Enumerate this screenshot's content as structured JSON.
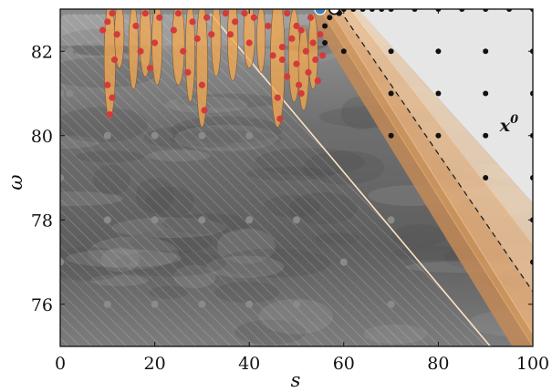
{
  "chart_data": {
    "type": "scatter",
    "xlabel": "s",
    "ylabel": "ω",
    "xlim": [
      0,
      100
    ],
    "ylim": [
      75,
      83
    ],
    "xticks": [
      "0",
      "20",
      "40",
      "60",
      "80",
      "100"
    ],
    "yticks": [
      "76",
      "78",
      "80",
      "82"
    ],
    "xtick_values": [
      0,
      20,
      40,
      60,
      80,
      100
    ],
    "ytick_values": [
      76,
      78,
      80,
      82
    ],
    "annotation": {
      "text": "x",
      "sup": "0",
      "x": 93,
      "y": 80.1
    },
    "colors": {
      "infeasible_background": "#7a7a7a",
      "feasible_region": "#e6e6e6",
      "uncertainty_band": "#f2c79a",
      "ellipse_fill": "#f6a84f",
      "sample_points": "#d33b3b",
      "grid_points": "#111111",
      "history_points": "#8a8a8a",
      "start_point": "#3b7fb8",
      "current_point": "#ffffff"
    },
    "feasible_boundary": {
      "x": [
        55,
        100
      ],
      "y": [
        83,
        75
      ],
      "style": "solid"
    },
    "band_boundaries": [
      {
        "x": [
          59,
          100
        ],
        "y": [
          83,
          76.3
        ],
        "style": "dashed"
      },
      {
        "x": [
          57,
          100
        ],
        "y": [
          83,
          75.3
        ],
        "style": "solid"
      },
      {
        "x": [
          61,
          100
        ],
        "y": [
          83,
          77.4
        ],
        "style": "solid"
      }
    ],
    "constraint_line": {
      "x": [
        31,
        91
      ],
      "y": [
        83,
        75
      ],
      "style": "solid",
      "color": "#fbe3c4"
    },
    "grid_points": [
      {
        "x": 60,
        "y": 83
      },
      {
        "x": 70,
        "y": 83
      },
      {
        "x": 80,
        "y": 83
      },
      {
        "x": 90,
        "y": 83
      },
      {
        "x": 100,
        "y": 83
      },
      {
        "x": 62,
        "y": 83
      },
      {
        "x": 64,
        "y": 83
      },
      {
        "x": 66,
        "y": 83
      },
      {
        "x": 68,
        "y": 83
      },
      {
        "x": 75,
        "y": 83
      },
      {
        "x": 85,
        "y": 83
      },
      {
        "x": 95,
        "y": 83
      },
      {
        "x": 60,
        "y": 82
      },
      {
        "x": 70,
        "y": 82
      },
      {
        "x": 80,
        "y": 82
      },
      {
        "x": 90,
        "y": 82
      },
      {
        "x": 100,
        "y": 82
      },
      {
        "x": 70,
        "y": 81
      },
      {
        "x": 80,
        "y": 81
      },
      {
        "x": 90,
        "y": 81
      },
      {
        "x": 100,
        "y": 81
      },
      {
        "x": 70,
        "y": 80
      },
      {
        "x": 80,
        "y": 80
      },
      {
        "x": 90,
        "y": 80
      },
      {
        "x": 100,
        "y": 80
      },
      {
        "x": 90,
        "y": 79
      },
      {
        "x": 100,
        "y": 79
      },
      {
        "x": 100,
        "y": 78
      },
      {
        "x": 56,
        "y": 82.6
      },
      {
        "x": 57,
        "y": 82.8
      },
      {
        "x": 58,
        "y": 83
      },
      {
        "x": 59,
        "y": 82.9
      },
      {
        "x": 56,
        "y": 82.2
      },
      {
        "x": 100,
        "y": 77
      }
    ],
    "history_points": [
      {
        "x": 0,
        "y": 83
      },
      {
        "x": 5,
        "y": 83
      },
      {
        "x": 10,
        "y": 83
      },
      {
        "x": 15,
        "y": 83
      },
      {
        "x": 20,
        "y": 83
      },
      {
        "x": 25,
        "y": 83
      },
      {
        "x": 30,
        "y": 83
      },
      {
        "x": 35,
        "y": 83
      },
      {
        "x": 40,
        "y": 83
      },
      {
        "x": 45,
        "y": 83
      },
      {
        "x": 50,
        "y": 83
      },
      {
        "x": 0,
        "y": 82.9
      },
      {
        "x": 0,
        "y": 82
      },
      {
        "x": 0,
        "y": 81
      },
      {
        "x": 2,
        "y": 82
      },
      {
        "x": 2,
        "y": 81
      },
      {
        "x": 10,
        "y": 80
      },
      {
        "x": 20,
        "y": 80
      },
      {
        "x": 30,
        "y": 80
      },
      {
        "x": 40,
        "y": 80
      },
      {
        "x": 10,
        "y": 78
      },
      {
        "x": 20,
        "y": 78
      },
      {
        "x": 30,
        "y": 78
      },
      {
        "x": 40,
        "y": 78
      },
      {
        "x": 50,
        "y": 78
      },
      {
        "x": 70,
        "y": 78
      },
      {
        "x": 10,
        "y": 76
      },
      {
        "x": 20,
        "y": 76
      },
      {
        "x": 30,
        "y": 76
      },
      {
        "x": 40,
        "y": 76
      },
      {
        "x": 50,
        "y": 76
      },
      {
        "x": 0,
        "y": 79
      },
      {
        "x": 0,
        "y": 77
      },
      {
        "x": 60,
        "y": 77
      },
      {
        "x": 70,
        "y": 76
      }
    ],
    "sample_points": [
      {
        "x": 9,
        "y": 82.5
      },
      {
        "x": 10,
        "y": 81.2
      },
      {
        "x": 10.5,
        "y": 80.5
      },
      {
        "x": 11,
        "y": 82.9
      },
      {
        "x": 11.5,
        "y": 81.8
      },
      {
        "x": 12,
        "y": 82.4
      },
      {
        "x": 10,
        "y": 82.7
      },
      {
        "x": 11,
        "y": 80.9
      },
      {
        "x": 16,
        "y": 82.6
      },
      {
        "x": 17,
        "y": 82.0
      },
      {
        "x": 18,
        "y": 82.9
      },
      {
        "x": 19,
        "y": 81.6
      },
      {
        "x": 20,
        "y": 82.2
      },
      {
        "x": 21,
        "y": 82.8
      },
      {
        "x": 24,
        "y": 82.5
      },
      {
        "x": 25,
        "y": 82.9
      },
      {
        "x": 26,
        "y": 82.0
      },
      {
        "x": 27,
        "y": 81.5
      },
      {
        "x": 28,
        "y": 82.7
      },
      {
        "x": 29,
        "y": 82.3
      },
      {
        "x": 30,
        "y": 81.2
      },
      {
        "x": 30.5,
        "y": 80.6
      },
      {
        "x": 31,
        "y": 82.8
      },
      {
        "x": 32,
        "y": 82.4
      },
      {
        "x": 35,
        "y": 82.9
      },
      {
        "x": 36,
        "y": 82.4
      },
      {
        "x": 37,
        "y": 82.7
      },
      {
        "x": 39,
        "y": 82.9
      },
      {
        "x": 40,
        "y": 82.2
      },
      {
        "x": 41,
        "y": 82.8
      },
      {
        "x": 44,
        "y": 82.6
      },
      {
        "x": 45,
        "y": 81.9
      },
      {
        "x": 46,
        "y": 80.9
      },
      {
        "x": 46.5,
        "y": 80.4
      },
      {
        "x": 47,
        "y": 82.1
      },
      {
        "x": 48,
        "y": 82.9
      },
      {
        "x": 49,
        "y": 82.3
      },
      {
        "x": 50,
        "y": 81.7
      },
      {
        "x": 50.5,
        "y": 81.2
      },
      {
        "x": 51,
        "y": 82.5
      },
      {
        "x": 52,
        "y": 82.0
      },
      {
        "x": 52.5,
        "y": 81.5
      },
      {
        "x": 53,
        "y": 82.8
      },
      {
        "x": 53.5,
        "y": 82.2
      },
      {
        "x": 54,
        "y": 81.8
      },
      {
        "x": 54.5,
        "y": 81.3
      },
      {
        "x": 55,
        "y": 82.4
      },
      {
        "x": 55.5,
        "y": 81.9
      },
      {
        "x": 50,
        "y": 82.6
      },
      {
        "x": 48,
        "y": 81.4
      },
      {
        "x": 47,
        "y": 81.8
      },
      {
        "x": 51,
        "y": 81.0
      }
    ],
    "ellipses": [
      {
        "cx": 10.5,
        "cy": 81.8,
        "rx": 1.2,
        "ry": 1.4
      },
      {
        "cx": 12.5,
        "cy": 82.4,
        "rx": 1.0,
        "ry": 0.8
      },
      {
        "cx": 15.5,
        "cy": 82.1,
        "rx": 1.0,
        "ry": 1.0
      },
      {
        "cx": 18,
        "cy": 82.3,
        "rx": 1.2,
        "ry": 0.9
      },
      {
        "cx": 20.5,
        "cy": 82.2,
        "rx": 1.1,
        "ry": 1.0
      },
      {
        "cx": 25,
        "cy": 82.2,
        "rx": 1.3,
        "ry": 1.0
      },
      {
        "cx": 27.5,
        "cy": 82.0,
        "rx": 1.0,
        "ry": 1.2
      },
      {
        "cx": 30,
        "cy": 81.7,
        "rx": 1.2,
        "ry": 1.5
      },
      {
        "cx": 33,
        "cy": 82.3,
        "rx": 1.0,
        "ry": 0.9
      },
      {
        "cx": 36.5,
        "cy": 82.3,
        "rx": 1.1,
        "ry": 1.0
      },
      {
        "cx": 40,
        "cy": 82.4,
        "rx": 1.2,
        "ry": 0.8
      },
      {
        "cx": 42.5,
        "cy": 82.3,
        "rx": 0.9,
        "ry": 0.8
      },
      {
        "cx": 46,
        "cy": 81.8,
        "rx": 1.5,
        "ry": 1.6
      },
      {
        "cx": 49.5,
        "cy": 81.9,
        "rx": 1.2,
        "ry": 1.1
      },
      {
        "cx": 51.5,
        "cy": 81.6,
        "rx": 1.1,
        "ry": 1.0
      },
      {
        "cx": 53.5,
        "cy": 82.0,
        "rx": 1.0,
        "ry": 0.9
      }
    ],
    "start_point": {
      "x": 55,
      "y": 83
    },
    "current_point": {
      "x": 58,
      "y": 83
    }
  }
}
